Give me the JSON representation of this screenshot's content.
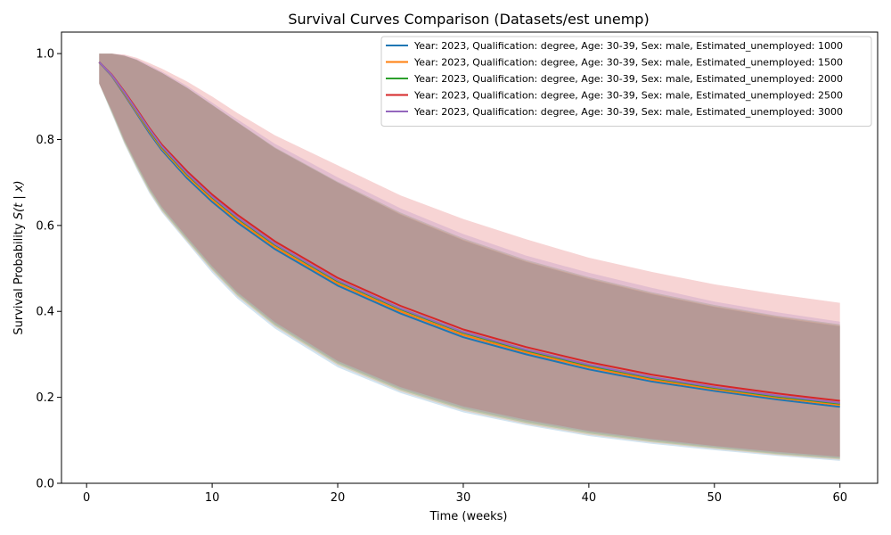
{
  "chart_data": {
    "type": "line",
    "title": "Survival Curves Comparison (Datasets/est unemp)",
    "xlabel": "Time (weeks)",
    "ylabel_prefix": "Survival Probability ",
    "ylabel_math": "S(t | x)",
    "xlim": [
      -2,
      63
    ],
    "ylim": [
      0.0,
      1.05
    ],
    "x_ticks": [
      0,
      10,
      20,
      30,
      40,
      50,
      60
    ],
    "x_tick_labels": [
      "0",
      "10",
      "20",
      "30",
      "40",
      "50",
      "60"
    ],
    "y_ticks": [
      0.0,
      0.2,
      0.4,
      0.6,
      0.8,
      1.0
    ],
    "y_tick_labels": [
      "0.0",
      "0.2",
      "0.4",
      "0.6",
      "0.8",
      "1.0"
    ],
    "grid": false,
    "legend_position": "top-right",
    "x": [
      1,
      2,
      3,
      4,
      5,
      6,
      8,
      10,
      12,
      15,
      20,
      25,
      30,
      35,
      40,
      45,
      50,
      55,
      60
    ],
    "series": [
      {
        "name": "Year: 2023, Qualification: degree, Age: 30-39, Sex: male, Estimated_unemployed: 1000",
        "color": "#1f77b4",
        "values": [
          0.98,
          0.948,
          0.905,
          0.86,
          0.815,
          0.775,
          0.71,
          0.655,
          0.607,
          0.545,
          0.46,
          0.395,
          0.34,
          0.3,
          0.265,
          0.237,
          0.215,
          0.195,
          0.178
        ],
        "lower": [
          0.93,
          0.86,
          0.79,
          0.73,
          0.675,
          0.63,
          0.56,
          0.49,
          0.43,
          0.36,
          0.27,
          0.21,
          0.165,
          0.135,
          0.11,
          0.092,
          0.077,
          0.064,
          0.052
        ],
        "upper": [
          1.0,
          1.0,
          0.995,
          0.985,
          0.97,
          0.955,
          0.92,
          0.88,
          0.84,
          0.78,
          0.7,
          0.625,
          0.565,
          0.515,
          0.475,
          0.44,
          0.41,
          0.385,
          0.365
        ]
      },
      {
        "name": "Year: 2023, Qualification: degree, Age: 30-39, Sex: male, Estimated_unemployed: 1500",
        "color": "#ff7f0e",
        "values": [
          0.98,
          0.949,
          0.907,
          0.863,
          0.819,
          0.779,
          0.715,
          0.66,
          0.612,
          0.55,
          0.465,
          0.4,
          0.345,
          0.305,
          0.27,
          0.241,
          0.219,
          0.199,
          0.182
        ],
        "lower": [
          0.93,
          0.862,
          0.792,
          0.733,
          0.678,
          0.633,
          0.563,
          0.495,
          0.435,
          0.365,
          0.275,
          0.214,
          0.169,
          0.138,
          0.113,
          0.095,
          0.08,
          0.066,
          0.055
        ],
        "upper": [
          1.0,
          1.0,
          0.995,
          0.985,
          0.97,
          0.955,
          0.92,
          0.88,
          0.84,
          0.78,
          0.7,
          0.627,
          0.567,
          0.517,
          0.477,
          0.442,
          0.412,
          0.388,
          0.367
        ]
      },
      {
        "name": "Year: 2023, Qualification: degree, Age: 30-39, Sex: male, Estimated_unemployed: 2000",
        "color": "#2ca02c",
        "values": [
          0.98,
          0.95,
          0.909,
          0.866,
          0.822,
          0.782,
          0.719,
          0.665,
          0.617,
          0.555,
          0.47,
          0.405,
          0.35,
          0.309,
          0.274,
          0.245,
          0.222,
          0.202,
          0.185
        ],
        "lower": [
          0.93,
          0.864,
          0.795,
          0.736,
          0.681,
          0.636,
          0.566,
          0.498,
          0.438,
          0.368,
          0.278,
          0.217,
          0.172,
          0.141,
          0.116,
          0.097,
          0.082,
          0.068,
          0.057
        ],
        "upper": [
          1.0,
          1.0,
          0.995,
          0.985,
          0.97,
          0.955,
          0.921,
          0.881,
          0.841,
          0.782,
          0.702,
          0.63,
          0.57,
          0.52,
          0.48,
          0.445,
          0.415,
          0.39,
          0.37
        ]
      },
      {
        "name": "Year: 2023, Qualification: degree, Age: 30-39, Sex: male, Estimated_unemployed: 2500",
        "color": "#d62728",
        "values": [
          0.98,
          0.951,
          0.912,
          0.87,
          0.827,
          0.788,
          0.726,
          0.672,
          0.625,
          0.563,
          0.478,
          0.413,
          0.358,
          0.317,
          0.282,
          0.253,
          0.229,
          0.209,
          0.192
        ],
        "lower": [
          0.93,
          0.868,
          0.8,
          0.742,
          0.688,
          0.643,
          0.573,
          0.505,
          0.445,
          0.375,
          0.285,
          0.224,
          0.179,
          0.148,
          0.122,
          0.103,
          0.087,
          0.073,
          0.062
        ],
        "upper": [
          1.0,
          1.0,
          0.998,
          0.99,
          0.978,
          0.965,
          0.935,
          0.9,
          0.862,
          0.81,
          0.74,
          0.67,
          0.615,
          0.568,
          0.525,
          0.492,
          0.463,
          0.44,
          0.42
        ]
      },
      {
        "name": "Year: 2023, Qualification: degree, Age: 30-39, Sex: male, Estimated_unemployed: 3000",
        "color": "#9467bd",
        "values": [
          0.98,
          0.95,
          0.91,
          0.867,
          0.824,
          0.784,
          0.721,
          0.667,
          0.619,
          0.557,
          0.472,
          0.407,
          0.352,
          0.311,
          0.276,
          0.247,
          0.224,
          0.204,
          0.187
        ],
        "lower": [
          0.93,
          0.866,
          0.797,
          0.739,
          0.684,
          0.639,
          0.569,
          0.501,
          0.441,
          0.371,
          0.281,
          0.22,
          0.175,
          0.144,
          0.119,
          0.1,
          0.084,
          0.07,
          0.059
        ],
        "upper": [
          1.0,
          1.0,
          0.996,
          0.987,
          0.973,
          0.958,
          0.925,
          0.886,
          0.847,
          0.79,
          0.712,
          0.64,
          0.58,
          0.53,
          0.49,
          0.455,
          0.423,
          0.398,
          0.376
        ]
      }
    ]
  }
}
